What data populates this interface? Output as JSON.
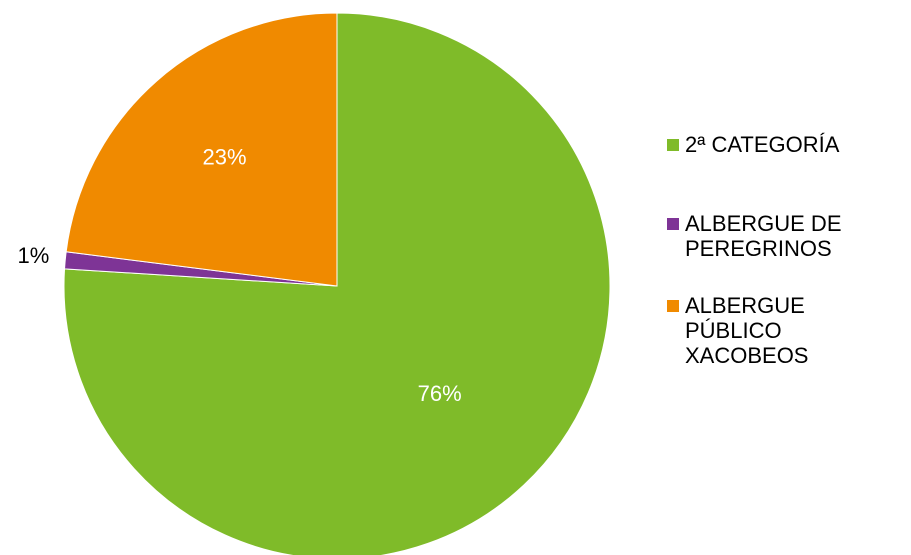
{
  "colors": {
    "2a_categoria": "#7FBB29",
    "albergue_peregrinos": "#7E3496",
    "albergue_publico": "#F08A00",
    "background": "#FFFFFF"
  },
  "chart_data": {
    "type": "pie",
    "title": "",
    "slices": [
      {
        "label": "2ª CATEGORÍA",
        "value": 76,
        "display": "76%",
        "color": "#7FBB29"
      },
      {
        "label": "ALBERGUE DE\nPEREGRINOS",
        "value": 1,
        "display": "1%",
        "color": "#7E3496"
      },
      {
        "label": "ALBERGUE\nPÚBLICO\nXACOBEOS",
        "value": 23,
        "display": "23%",
        "color": "#F08A00"
      }
    ],
    "legend_position": "right"
  }
}
